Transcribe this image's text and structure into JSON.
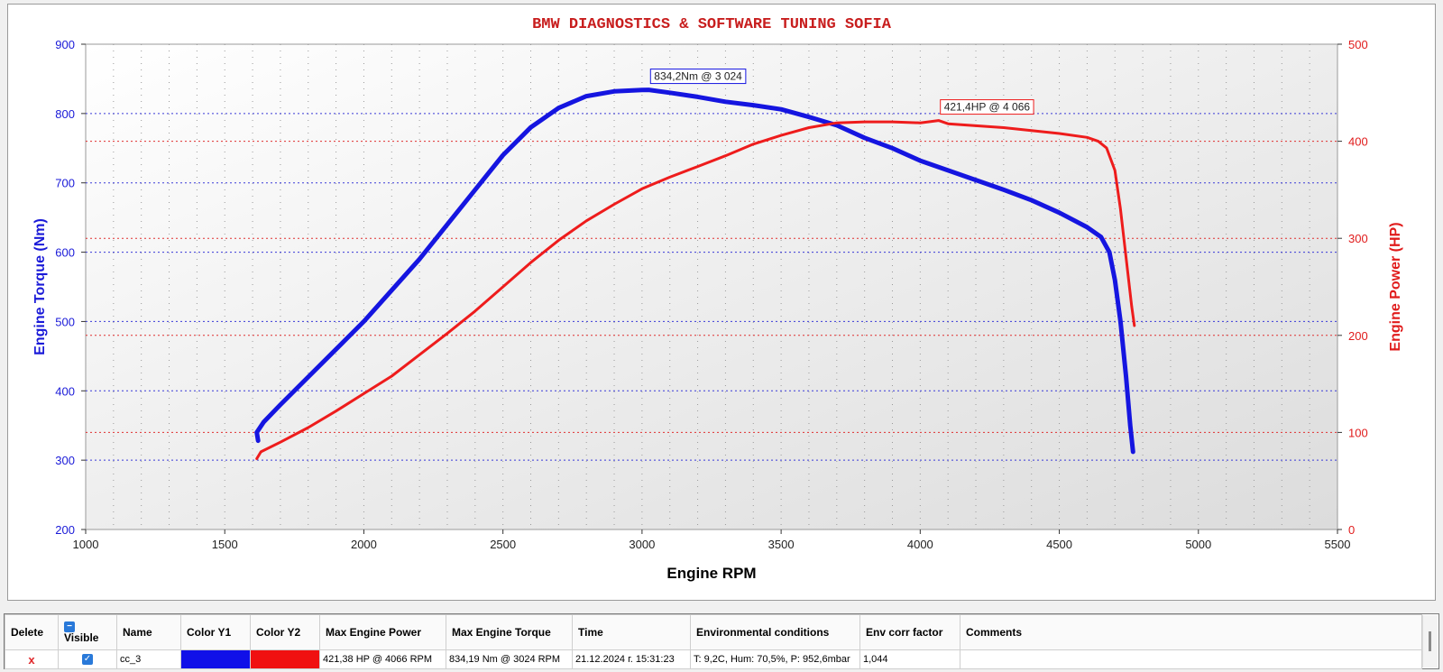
{
  "chart_data": {
    "type": "line",
    "title": "BMW DIAGNOSTICS & SOFTWARE TUNING SOFIA",
    "xlabel": "Engine RPM",
    "ylabel_left": "Engine Torque (Nm)",
    "ylabel_right": "Engine Power (HP)",
    "xlim": [
      1000,
      5500
    ],
    "ylim_left": [
      200,
      900
    ],
    "ylim_right": [
      0,
      500
    ],
    "x_ticks": [
      "1000",
      "1500",
      "2000",
      "2500",
      "3000",
      "3500",
      "4000",
      "4500",
      "5000",
      "5500"
    ],
    "y_left_ticks": [
      "200",
      "300",
      "400",
      "500",
      "600",
      "700",
      "800",
      "900"
    ],
    "y_right_ticks": [
      "0",
      "100",
      "200",
      "300",
      "400",
      "500"
    ],
    "grid": true,
    "series": [
      {
        "name": "Torque",
        "axis": "left",
        "color": "#1515e0",
        "x": [
          1620,
          1615,
          1640,
          1700,
          1800,
          1900,
          2000,
          2100,
          2200,
          2300,
          2400,
          2500,
          2600,
          2700,
          2800,
          2900,
          3000,
          3024,
          3100,
          3200,
          3300,
          3400,
          3500,
          3600,
          3700,
          3800,
          3900,
          4000,
          4100,
          4200,
          4300,
          4400,
          4500,
          4600,
          4650,
          4680,
          4700,
          4720,
          4740,
          4755,
          4765
        ],
        "y": [
          328,
          340,
          355,
          380,
          420,
          460,
          500,
          545,
          590,
          640,
          690,
          740,
          780,
          808,
          825,
          832,
          834,
          834.2,
          830,
          824,
          817,
          812,
          806,
          795,
          783,
          765,
          750,
          732,
          718,
          704,
          690,
          675,
          657,
          636,
          622,
          600,
          560,
          500,
          420,
          350,
          312
        ]
      },
      {
        "name": "Power",
        "axis": "right",
        "color": "#ee1c1c",
        "x": [
          1615,
          1630,
          1700,
          1800,
          1900,
          2000,
          2100,
          2200,
          2300,
          2400,
          2500,
          2600,
          2700,
          2800,
          2900,
          3000,
          3100,
          3200,
          3300,
          3400,
          3500,
          3600,
          3700,
          3800,
          3900,
          4000,
          4066,
          4100,
          4200,
          4300,
          4400,
          4500,
          4600,
          4640,
          4670,
          4700,
          4720,
          4740,
          4760,
          4770
        ],
        "y": [
          73,
          80,
          90,
          105,
          122,
          140,
          158,
          180,
          202,
          225,
          250,
          275,
          298,
          318,
          335,
          351,
          363,
          374,
          385,
          397,
          406,
          414,
          419,
          420,
          420,
          419,
          421.4,
          418,
          416,
          414,
          411,
          408,
          404,
          400,
          393,
          370,
          330,
          280,
          230,
          210
        ]
      }
    ],
    "annotations": [
      {
        "text": "834,2Nm @ 3 024",
        "x": 3024,
        "y": 834.2,
        "axis": "left",
        "color": "#1515e0"
      },
      {
        "text": "421,4HP @ 4 066",
        "x": 4066,
        "y": 421.4,
        "axis": "right",
        "color": "#ee1c1c"
      }
    ]
  },
  "grid_table": {
    "headers": {
      "delete": "Delete",
      "visible": "Visible",
      "name": "Name",
      "color_y1": "Color Y1",
      "color_y2": "Color Y2",
      "max_power": "Max Engine Power",
      "max_torque": "Max Engine Torque",
      "time": "Time",
      "env": "Environmental conditions",
      "env_corr": "Env corr factor",
      "comments": "Comments"
    },
    "rows": [
      {
        "delete_icon": "x-icon",
        "delete_symbol": "x",
        "visible": true,
        "name": "cc_3",
        "color_y1": "#1010e8",
        "color_y2": "#f01010",
        "max_power": "421,38 HP @ 4066 RPM",
        "max_torque": "834,19 Nm @ 3024 RPM",
        "time": "21.12.2024 г. 15:31:23",
        "env": "T: 9,2C, Hum: 70,5%, P: 952,6mbar",
        "env_corr": "1,044",
        "comments": ""
      }
    ]
  }
}
